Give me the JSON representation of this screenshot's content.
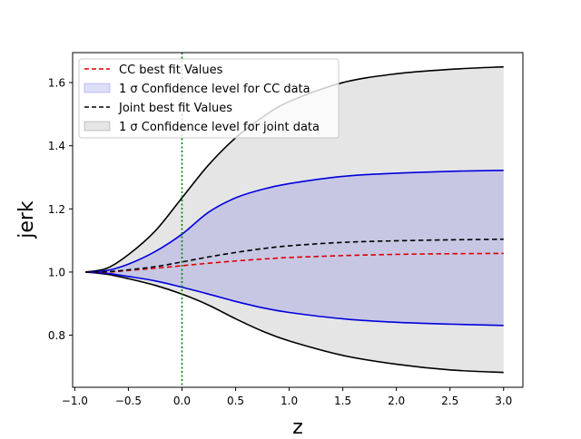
{
  "chart_data": {
    "type": "line",
    "title": "",
    "xlabel": "z",
    "ylabel": "jerk",
    "xlim": [
      -1.02,
      3.18
    ],
    "ylim": [
      0.635,
      1.695
    ],
    "xticks": [
      -1.0,
      -0.5,
      0.0,
      0.5,
      1.0,
      1.5,
      2.0,
      2.5,
      3.0
    ],
    "xtick_labels": [
      "−1.0",
      "−0.5",
      "0.0",
      "0.5",
      "1.0",
      "1.5",
      "2.0",
      "2.5",
      "3.0"
    ],
    "yticks": [
      0.8,
      1.0,
      1.2,
      1.4,
      1.6
    ],
    "ytick_labels": [
      "0.8",
      "1.0",
      "1.2",
      "1.4",
      "1.6"
    ],
    "vertical_line": {
      "x": 0.0,
      "color": "#008000",
      "style": "dotted"
    },
    "legend": {
      "placement": "top-left",
      "entries": [
        "CC best fit Values",
        "1 σ Confidence level for CC data",
        "Joint best fit Values",
        "1 σ Confidence level for joint data"
      ]
    },
    "x": [
      -0.9,
      -0.7,
      -0.5,
      -0.25,
      0.0,
      0.25,
      0.5,
      0.75,
      1.0,
      1.5,
      2.0,
      2.5,
      3.0
    ],
    "series": [
      {
        "name": "CC best fit Values",
        "kind": "line",
        "color": "#dd0000",
        "dash": true,
        "values": [
          1.0,
          1.0,
          1.005,
          1.012,
          1.02,
          1.028,
          1.035,
          1.041,
          1.046,
          1.052,
          1.056,
          1.058,
          1.059
        ]
      },
      {
        "name": "1 σ Confidence level for CC data",
        "kind": "band",
        "color": "#0000dd",
        "upper": [
          1.0,
          1.005,
          1.025,
          1.065,
          1.12,
          1.19,
          1.235,
          1.262,
          1.28,
          1.303,
          1.313,
          1.319,
          1.322
        ],
        "lower": [
          1.0,
          0.996,
          0.986,
          0.972,
          0.952,
          0.93,
          0.907,
          0.887,
          0.872,
          0.852,
          0.841,
          0.835,
          0.831
        ]
      },
      {
        "name": "Joint best fit Values",
        "kind": "line",
        "color": "#000000",
        "dash": true,
        "values": [
          1.0,
          1.001,
          1.007,
          1.017,
          1.032,
          1.048,
          1.062,
          1.074,
          1.083,
          1.094,
          1.099,
          1.102,
          1.104
        ]
      },
      {
        "name": "1 σ Confidence level for joint data",
        "kind": "band",
        "color": "#000000",
        "upper": [
          1.0,
          1.012,
          1.055,
          1.13,
          1.235,
          1.34,
          1.425,
          1.49,
          1.54,
          1.6,
          1.628,
          1.642,
          1.65
        ],
        "lower": [
          1.0,
          0.993,
          0.979,
          0.958,
          0.93,
          0.895,
          0.852,
          0.813,
          0.782,
          0.736,
          0.708,
          0.69,
          0.682
        ]
      }
    ]
  }
}
